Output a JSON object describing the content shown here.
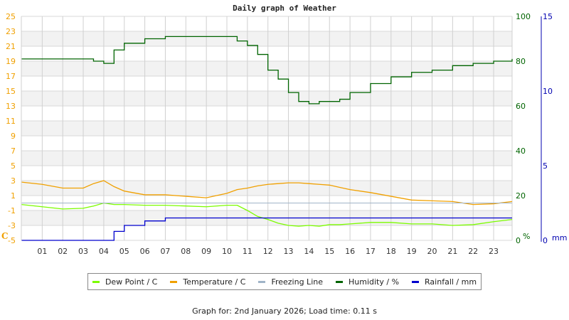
{
  "chart_data": {
    "type": "line",
    "title": "Daily graph of Weather",
    "x_tick_labels": [
      "01",
      "02",
      "03",
      "04",
      "05",
      "06",
      "07",
      "08",
      "09",
      "10",
      "11",
      "12",
      "13",
      "14",
      "15",
      "16",
      "17",
      "18",
      "19",
      "20",
      "21",
      "22",
      "23"
    ],
    "xlabel": "",
    "axes": {
      "temperature": {
        "label": "C",
        "range": [
          -5,
          25
        ],
        "ticks": [
          "25",
          "23",
          "21",
          "19",
          "17",
          "15",
          "13",
          "11",
          "9",
          "7",
          "5",
          "3",
          "1",
          "-1",
          "-3",
          "-5"
        ],
        "color": "#f0a000"
      },
      "humidity": {
        "label": "%",
        "range": [
          0,
          100
        ],
        "ticks": [
          "100",
          "80",
          "60",
          "40",
          "20",
          "0"
        ],
        "color": "#006400"
      },
      "rainfall": {
        "label": "mm",
        "range": [
          0,
          15
        ],
        "ticks": [
          "15",
          "10",
          "5",
          "0"
        ],
        "color": "#0000b0"
      }
    },
    "x_hours": [
      0,
      1,
      2,
      3,
      3.5,
      4,
      4.5,
      5,
      6,
      7,
      8,
      9,
      10,
      10.5,
      11,
      11.5,
      12,
      12.5,
      13,
      13.5,
      14,
      14.5,
      15,
      15.5,
      16,
      17,
      18,
      19,
      20,
      21,
      22,
      23,
      23.9
    ],
    "series": [
      {
        "name": "Dew Point / C",
        "color": "#7cfc00",
        "axis": "temperature",
        "values": [
          -0.2,
          -0.5,
          -0.8,
          -0.7,
          -0.4,
          0.0,
          -0.2,
          -0.2,
          -0.3,
          -0.3,
          -0.4,
          -0.5,
          -0.3,
          -0.3,
          -1.0,
          -1.8,
          -2.2,
          -2.7,
          -3.0,
          -3.1,
          -3.0,
          -3.1,
          -2.9,
          -2.9,
          -2.8,
          -2.6,
          -2.6,
          -2.8,
          -2.8,
          -3.0,
          -2.9,
          -2.5,
          -2.2
        ]
      },
      {
        "name": "Temperature / C",
        "color": "#f0a000",
        "axis": "temperature",
        "values": [
          2.8,
          2.5,
          2.0,
          2.0,
          2.6,
          3.0,
          2.2,
          1.6,
          1.1,
          1.1,
          0.9,
          0.7,
          1.3,
          1.8,
          2.0,
          2.3,
          2.5,
          2.6,
          2.7,
          2.7,
          2.6,
          2.5,
          2.4,
          2.1,
          1.8,
          1.4,
          0.9,
          0.4,
          0.3,
          0.2,
          -0.2,
          -0.1,
          0.2
        ]
      },
      {
        "name": "Freezing Line",
        "color": "#a0b4c8",
        "axis": "temperature",
        "values": [
          0,
          0,
          0,
          0,
          0,
          0,
          0,
          0,
          0,
          0,
          0,
          0,
          0,
          0,
          0,
          0,
          0,
          0,
          0,
          0,
          0,
          0,
          0,
          0,
          0,
          0,
          0,
          0,
          0,
          0,
          0,
          0,
          0
        ]
      },
      {
        "name": "Humidity / %",
        "color": "#006400",
        "axis": "humidity",
        "values": [
          81,
          81,
          81,
          81,
          80,
          79,
          85,
          88,
          90,
          91,
          91,
          91,
          91,
          89,
          87,
          83,
          76,
          72,
          66,
          62,
          61,
          62,
          62,
          63,
          66,
          70,
          73,
          75,
          76,
          78,
          79,
          80,
          81
        ]
      },
      {
        "name": "Rainfall / mm",
        "color": "#0000cd",
        "axis": "rainfall",
        "values": [
          0,
          0,
          0,
          0,
          0,
          0,
          0.6,
          1.0,
          1.3,
          1.5,
          1.5,
          1.5,
          1.5,
          1.5,
          1.5,
          1.5,
          1.5,
          1.5,
          1.5,
          1.5,
          1.5,
          1.5,
          1.5,
          1.5,
          1.5,
          1.5,
          1.5,
          1.5,
          1.5,
          1.5,
          1.5,
          1.5,
          1.5
        ]
      }
    ],
    "grid": true,
    "legend_position": "bottom"
  },
  "legend": {
    "items": [
      {
        "label": "Dew Point / C",
        "color": "#7cfc00"
      },
      {
        "label": "Temperature / C",
        "color": "#f0a000"
      },
      {
        "label": "Freezing Line",
        "color": "#a0b4c8"
      },
      {
        "label": "Humidity / %",
        "color": "#006400"
      },
      {
        "label": "Rainfall / mm",
        "color": "#0000cd"
      }
    ]
  },
  "footer": {
    "text": "Graph for: 2nd January 2026; Load time: 0.11 s"
  }
}
